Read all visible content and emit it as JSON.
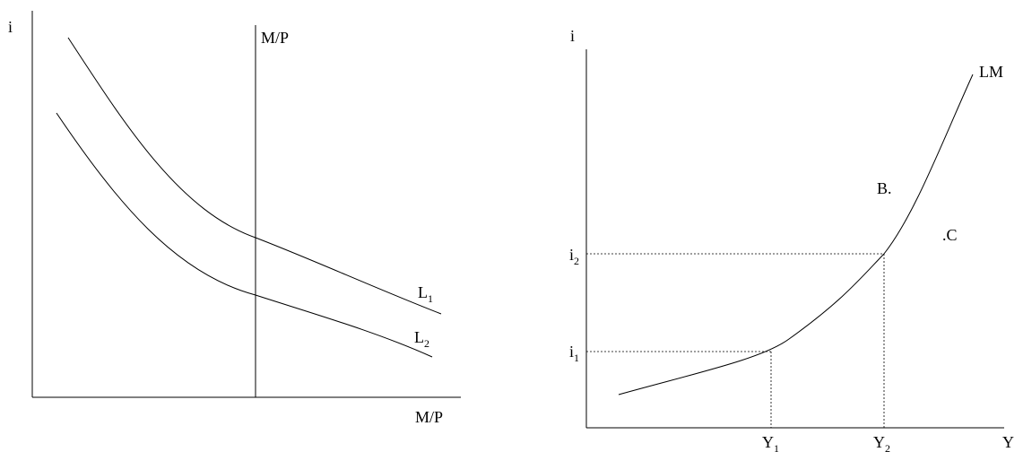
{
  "left_panel": {
    "y_axis_label": "i",
    "x_axis_label": "M/P",
    "supply_label": "M/P",
    "curve_upper": {
      "base": "L",
      "sub": "1"
    },
    "curve_lower": {
      "base": "L",
      "sub": "2"
    }
  },
  "right_panel": {
    "y_axis_label": "i",
    "x_axis_label": "Y",
    "curve_label": "LM",
    "point_b": "B.",
    "point_c": ".C",
    "i1": {
      "base": "i",
      "sub": "1"
    },
    "i2": {
      "base": "i",
      "sub": "2"
    },
    "y1": {
      "base": "Y",
      "sub": "1"
    },
    "y2": {
      "base": "Y",
      "sub": "2"
    }
  }
}
